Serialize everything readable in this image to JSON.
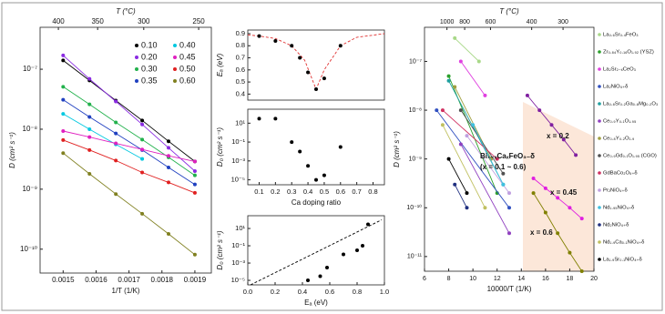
{
  "chart_data": [
    {
      "type": "scatter",
      "xlabel": "1/T (1/K)",
      "ylabel": "D (cm² s⁻¹)",
      "x2label": "T (°C)",
      "xlim": [
        0.00143,
        0.00195
      ],
      "xticks": [
        0.0015,
        0.0016,
        0.0017,
        0.0018,
        0.0019
      ],
      "x2ticks": [
        400,
        350,
        300,
        250
      ],
      "ylog": true,
      "ylim": [
        4e-11,
        5e-07
      ],
      "yticks": [
        {
          "value": 1e-07,
          "label": "10⁻⁷"
        },
        {
          "value": 1e-08,
          "label": "10⁻⁸"
        },
        {
          "value": 1e-09,
          "label": "10⁻⁹"
        },
        {
          "value": 1e-10,
          "label": "10⁻¹⁰"
        }
      ],
      "series": [
        {
          "name": "0.10",
          "color": "#000000",
          "mode": "both",
          "x": [
            0.0015,
            0.00158,
            0.00166,
            0.00174,
            0.00182,
            0.0019
          ],
          "values": [
            1.4e-07,
            6.5e-08,
            3e-08,
            1.4e-08,
            6.3e-09,
            2.9e-09
          ]
        },
        {
          "name": "0.20",
          "color": "#8a2be2",
          "mode": "both",
          "x": [
            0.0015,
            0.00158,
            0.00166,
            0.00174,
            0.00182,
            0.0019
          ],
          "values": [
            1.7e-07,
            6.9e-08,
            2.9e-08,
            1.2e-08,
            4.9e-09,
            2e-09
          ]
        },
        {
          "name": "0.30",
          "color": "#22b14c",
          "mode": "both",
          "x": [
            0.0015,
            0.00158,
            0.00166,
            0.00174,
            0.00182,
            0.0019
          ],
          "values": [
            5.1e-08,
            2.6e-08,
            1.3e-08,
            6.7e-09,
            3.4e-09,
            1.7e-09
          ]
        },
        {
          "name": "0.35",
          "color": "#2040c0",
          "mode": "both",
          "x": [
            0.0015,
            0.00158,
            0.00166,
            0.00174,
            0.00182,
            0.0019
          ],
          "values": [
            3.1e-08,
            1.6e-08,
            8.5e-09,
            4.5e-09,
            2.3e-09,
            1.2e-09
          ]
        },
        {
          "name": "0.40",
          "color": "#00c8e0",
          "mode": "both",
          "x": [
            0.0015,
            0.00158,
            0.00166,
            0.00174
          ],
          "values": [
            1.8e-08,
            1e-08,
            5.6e-09,
            3.2e-09
          ]
        },
        {
          "name": "0.45",
          "color": "#e020c0",
          "mode": "both",
          "x": [
            0.0015,
            0.00158,
            0.00166,
            0.00174,
            0.00182,
            0.0019
          ],
          "values": [
            9.3e-09,
            7.4e-09,
            5.8e-09,
            4.6e-09,
            3.6e-09,
            2.9e-09
          ]
        },
        {
          "name": "0.50",
          "color": "#e02020",
          "mode": "both",
          "x": [
            0.0015,
            0.00158,
            0.00166,
            0.00174,
            0.00182,
            0.0019
          ],
          "values": [
            6.6e-09,
            4.5e-09,
            3e-09,
            1.9e-09,
            1.3e-09,
            8.7e-10
          ]
        },
        {
          "name": "0.60",
          "color": "#808020",
          "mode": "both",
          "x": [
            0.0015,
            0.00158,
            0.00166,
            0.00174,
            0.00182,
            0.0019
          ],
          "values": [
            4e-09,
            1.8e-09,
            8.3e-10,
            3.9e-10,
            1.8e-10,
            8.1e-11
          ]
        }
      ]
    },
    {
      "type": "scatter",
      "ylabel": "Eₐ (eV)",
      "xlim": [
        0.03,
        0.87
      ],
      "ylim": [
        0.35,
        0.93
      ],
      "yticks": [
        0.4,
        0.5,
        0.6,
        0.7,
        0.8,
        0.9
      ],
      "series": [
        {
          "color": "#e03030",
          "mode": "line",
          "dash": true,
          "x": [
            0.03,
            0.1,
            0.2,
            0.3,
            0.38,
            0.45,
            0.5,
            0.6,
            0.7,
            0.87
          ],
          "values": [
            0.89,
            0.88,
            0.86,
            0.8,
            0.68,
            0.44,
            0.6,
            0.8,
            0.87,
            0.9
          ]
        },
        {
          "color": "#000000",
          "mode": "points",
          "x": [
            0.1,
            0.2,
            0.3,
            0.35,
            0.4,
            0.45,
            0.5,
            0.6
          ],
          "values": [
            0.88,
            0.84,
            0.8,
            0.7,
            0.58,
            0.44,
            0.53,
            0.8
          ]
        }
      ]
    },
    {
      "type": "scatter",
      "xlabel": "Ca doping ratio",
      "ylabel": "D₀ (cm² s⁻¹)",
      "xlim": [
        0.03,
        0.87
      ],
      "xticks": [
        0.1,
        0.2,
        0.3,
        0.4,
        0.5,
        0.6,
        0.7,
        0.8
      ],
      "ylog": true,
      "ylim": [
        3e-06,
        300
      ],
      "yticks": [
        {
          "value": 10,
          "label": "10¹"
        },
        {
          "value": 0.1,
          "label": "10⁻¹"
        },
        {
          "value": 0.001,
          "label": "10⁻³"
        },
        {
          "value": 1e-05,
          "label": "10⁻⁵"
        }
      ],
      "series": [
        {
          "color": "#000000",
          "mode": "points",
          "x": [
            0.1,
            0.2,
            0.3,
            0.35,
            0.4,
            0.45,
            0.5,
            0.6
          ],
          "values": [
            30,
            30,
            0.1,
            0.01,
            0.0003,
            1e-05,
            3e-05,
            0.03
          ]
        }
      ]
    },
    {
      "type": "scatter",
      "xlabel": "Eₐ (eV)",
      "ylabel": "D₀ (cm² s⁻¹)",
      "xlim": [
        0,
        1
      ],
      "xticks": [
        {
          "value": 0,
          "label": "0.0"
        },
        0.2,
        0.4,
        0.6,
        0.8,
        {
          "value": 1,
          "label": "1.0"
        }
      ],
      "ylog": true,
      "ylim": [
        3e-06,
        300
      ],
      "yticks": [
        {
          "value": 10,
          "label": "10¹"
        },
        {
          "value": 0.1,
          "label": "10⁻¹"
        },
        {
          "value": 0.001,
          "label": "10⁻³"
        },
        {
          "value": 1e-05,
          "label": "10⁻⁵"
        }
      ],
      "series": [
        {
          "color": "#000000",
          "mode": "line",
          "dash": true,
          "x": [
            0.02,
            0.98
          ],
          "values": [
            3e-06,
            100
          ]
        },
        {
          "color": "#000000",
          "mode": "points",
          "x": [
            0.44,
            0.53,
            0.58,
            0.7,
            0.8,
            0.84,
            0.88
          ],
          "values": [
            1e-05,
            3e-05,
            0.0003,
            0.01,
            0.03,
            0.1,
            30
          ]
        }
      ]
    },
    {
      "type": "scatter",
      "xlabel": "10000/T (1/K)",
      "ylabel": "D (cm² s⁻¹)",
      "x2label": "T (°C)",
      "xlim": [
        6,
        20
      ],
      "xticks": [
        6,
        8,
        10,
        12,
        14,
        16,
        18,
        20
      ],
      "x2ticks": [
        1000,
        800,
        600,
        400,
        300
      ],
      "ylog": true,
      "ylim": [
        5e-12,
        5e-07
      ],
      "yticks": [
        {
          "value": 1e-07,
          "label": "10⁻⁷"
        },
        {
          "value": 1e-08,
          "label": "10⁻⁸"
        },
        {
          "value": 1e-09,
          "label": "10⁻⁹"
        },
        {
          "value": 1e-10,
          "label": "10⁻¹⁰"
        },
        {
          "value": 1e-11,
          "label": "10⁻¹¹"
        }
      ],
      "series": [
        {
          "name": "La₀.₆Sr₀.₄FeO₃",
          "color": "#a8d888",
          "mode": "both",
          "x": [
            8.5,
            10.5
          ],
          "values": [
            3e-07,
            1e-07
          ]
        },
        {
          "name": "Zr₀.₈₄Y₀.₁₆O₁.₉₂ (YSZ)",
          "color": "#2ca02c",
          "mode": "both",
          "x": [
            8,
            12
          ],
          "values": [
            5e-08,
            2e-10
          ]
        },
        {
          "name": "La₂Sr₂₋ₓCeO₃",
          "color": "#e040e0",
          "mode": "both",
          "x": [
            9,
            11
          ],
          "values": [
            1e-07,
            2e-08
          ]
        },
        {
          "name": "La₂NiO₄₊δ",
          "color": "#3050c0",
          "mode": "both",
          "x": [
            7,
            13
          ],
          "values": [
            1e-08,
            1e-10
          ]
        },
        {
          "name": "La₀.₈Sr₀.₂Ga₀.₈Mg₀.₂O₃",
          "color": "#20a0a0",
          "mode": "both",
          "x": [
            8,
            12.5
          ],
          "values": [
            4e-08,
            3e-10
          ]
        },
        {
          "name": "Ce₀.₉Y₀.₁O₁.₉₅",
          "color": "#9040c0",
          "mode": "both",
          "x": [
            9,
            13
          ],
          "values": [
            2e-09,
            3e-11
          ]
        },
        {
          "name": "Ce₀.₈Y₀.₂O₁.₉",
          "color": "#a0a040",
          "mode": "both",
          "x": [
            8.5,
            11.5
          ],
          "values": [
            3e-08,
            1e-09
          ]
        },
        {
          "name": "Ce₀.₉Gd₀.₁O₁.₉₅ (CGO)",
          "color": "#505050",
          "mode": "both",
          "x": [
            9,
            12.5
          ],
          "values": [
            1e-08,
            5e-10
          ]
        },
        {
          "name": "GdBaCo₂O₅₊δ",
          "color": "#d03060",
          "mode": "both",
          "x": [
            7.5,
            12
          ],
          "values": [
            1e-08,
            1e-09
          ]
        },
        {
          "name": "Pr₂NiO₄₊δ",
          "color": "#c0a0e0",
          "mode": "both",
          "x": [
            9.5,
            13
          ],
          "values": [
            3e-09,
            2e-10
          ]
        },
        {
          "name": "Nd₁.₉₅NiO₄₊δ",
          "color": "#40c0e0",
          "mode": "both",
          "x": [
            10,
            12.5
          ],
          "values": [
            5e-09,
            3e-10
          ]
        },
        {
          "name": "Nd₂NiO₄₊δ",
          "color": "#203080",
          "mode": "both",
          "x": [
            8.5,
            9.5
          ],
          "values": [
            3e-10,
            1e-10
          ]
        },
        {
          "name": "Nd₁.₉Ca₀.₁NiO₄₊δ",
          "color": "#c0c060",
          "mode": "both",
          "x": [
            7.5,
            11
          ],
          "values": [
            5e-09,
            1e-10
          ]
        },
        {
          "name": "La₁.₉Sr₀.₁NiO₄₊δ",
          "color": "#000000",
          "mode": "both",
          "x": [
            8,
            9.5
          ],
          "values": [
            1e-09,
            2e-10
          ]
        },
        {
          "color": "#8020a0",
          "mode": "both",
          "x": [
            14.5,
            15.5,
            16.5,
            17.5,
            18.5
          ],
          "values": [
            2e-08,
            1e-08,
            5e-09,
            2.5e-09,
            1.2e-09
          ]
        },
        {
          "color": "#e020e0",
          "mode": "both",
          "x": [
            15,
            16,
            17,
            18,
            19
          ],
          "values": [
            4e-10,
            2.5e-10,
            1.6e-10,
            1e-10,
            6e-11
          ]
        },
        {
          "color": "#808000",
          "mode": "both",
          "x": [
            15,
            16,
            17,
            18,
            19
          ],
          "values": [
            2e-10,
            8e-11,
            3e-11,
            1.2e-11,
            5e-12
          ]
        }
      ],
      "annotations": [
        {
          "text": "Bi₁₋ₓCaₓFeO₃₋δ",
          "color": "#d02020"
        },
        {
          "text": "(x = 0.1 ~ 0.6)",
          "color": "#d02020"
        },
        {
          "text": "x = 0.2",
          "color": "#8020a0"
        },
        {
          "text": "x = 0.45",
          "color": "#e020e0"
        },
        {
          "text": "x = 0.6",
          "color": "#808000"
        }
      ]
    }
  ]
}
